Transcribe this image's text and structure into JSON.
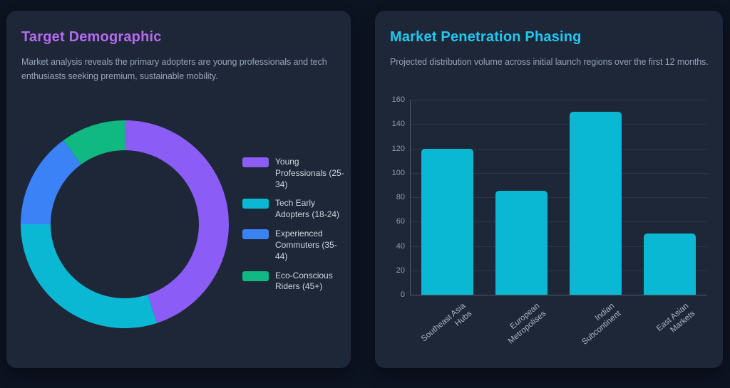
{
  "theme": {
    "page_bg": "#0c1321",
    "card_bg": "#1d2737",
    "subtitle_color": "#94a3b8",
    "grid_color": "rgba(148,163,184,0.13)",
    "axis_line_color": "rgba(148,163,184,0.42)",
    "y_tick_color": "#8f9aa9",
    "x_tick_color": "#a9b5c3",
    "legend_text_color": "#ced6df"
  },
  "cards": {
    "demographic": {
      "title": "Target Demographic",
      "title_color": "#b36bee",
      "subtitle": "Market analysis reveals the primary adopters are young professionals and tech enthusiasts seeking premium, sustainable mobility."
    },
    "penetration": {
      "title": "Market Penetration Phasing",
      "title_color": "#25c6f0",
      "subtitle": "Projected distribution volume across initial launch regions over the first 12 months."
    }
  },
  "chart_data": [
    {
      "type": "pie",
      "variant": "donut",
      "start_angle_deg": 0,
      "direction": "clockwise",
      "labels": [
        "Young Professionals (25-34)",
        "Tech Early Adopters (18-24)",
        "Experienced Commuters (35-44)",
        "Eco-Conscious Riders (45+)"
      ],
      "values": [
        45,
        30,
        15,
        10
      ],
      "unit": "percent",
      "colors": [
        "#8b5cf6",
        "#0bb8d4",
        "#3b82f6",
        "#10b981"
      ],
      "legend_position": "right"
    },
    {
      "type": "bar",
      "categories": [
        "Southeast Asia Hubs",
        "European Metropolises",
        "Indian Subcontinent",
        "East Asian Markets"
      ],
      "values": [
        120,
        85,
        150,
        50
      ],
      "bar_color": "#0bb8d4",
      "ylim": [
        0,
        160
      ],
      "ytick_step": 20,
      "grid": true,
      "xlabel_rotation_deg": -40,
      "legend": "none"
    }
  ]
}
